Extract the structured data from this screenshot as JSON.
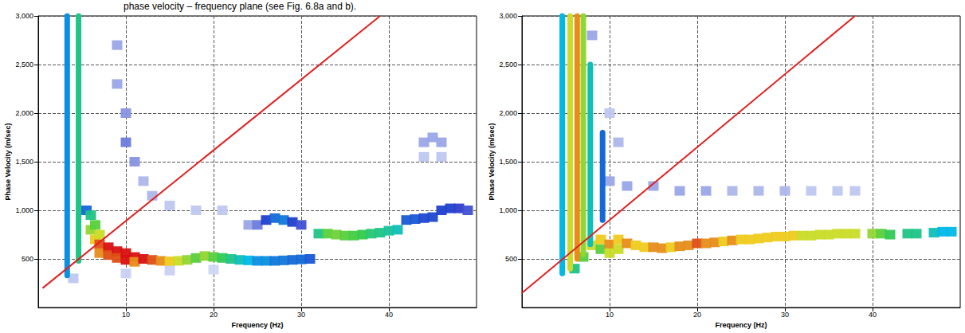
{
  "caption": "phase velocity – frequency plane (see Fig. 6.8a and b).",
  "chart_data": [
    {
      "type": "scatter",
      "x_label": "Frequency (Hz)",
      "y_label": "Phase Velocity (m/sec)",
      "xlim": [
        0,
        50
      ],
      "xticks": [
        10,
        20,
        30,
        40
      ],
      "ylim": [
        0,
        3000
      ],
      "yticks": [
        500,
        1000,
        1500,
        2000,
        2500,
        3000
      ],
      "grid": true,
      "intensity_range": [
        0,
        1
      ],
      "cells": [
        [
          5.5,
          1000,
          0.4
        ],
        [
          6,
          950,
          0.6
        ],
        [
          6,
          800,
          0.75
        ],
        [
          6.5,
          850,
          0.7
        ],
        [
          6.5,
          700,
          0.85
        ],
        [
          7,
          750,
          0.8
        ],
        [
          7,
          650,
          0.95
        ],
        [
          7,
          560,
          0.9
        ],
        [
          8,
          620,
          1
        ],
        [
          8,
          540,
          0.95
        ],
        [
          9,
          580,
          1
        ],
        [
          9,
          510,
          0.95
        ],
        [
          10,
          560,
          1
        ],
        [
          10,
          490,
          1
        ],
        [
          11,
          520,
          1
        ],
        [
          11,
          470,
          0.9
        ],
        [
          12,
          500,
          1
        ],
        [
          13,
          490,
          0.95
        ],
        [
          14,
          480,
          0.9
        ],
        [
          15,
          475,
          0.85
        ],
        [
          16,
          480,
          0.8
        ],
        [
          17,
          490,
          0.75
        ],
        [
          18,
          510,
          0.7
        ],
        [
          19,
          530,
          0.75
        ],
        [
          20,
          520,
          0.7
        ],
        [
          21,
          510,
          0.65
        ],
        [
          22,
          500,
          0.6
        ],
        [
          23,
          490,
          0.55
        ],
        [
          24,
          485,
          0.5
        ],
        [
          25,
          480,
          0.45
        ],
        [
          26,
          480,
          0.45
        ],
        [
          27,
          480,
          0.42
        ],
        [
          28,
          485,
          0.42
        ],
        [
          29,
          490,
          0.4
        ],
        [
          30,
          495,
          0.4
        ],
        [
          31,
          500,
          0.38
        ],
        [
          32,
          760,
          0.6
        ],
        [
          33,
          760,
          0.7
        ],
        [
          34,
          750,
          0.72
        ],
        [
          35,
          740,
          0.7
        ],
        [
          36,
          740,
          0.68
        ],
        [
          37,
          750,
          0.66
        ],
        [
          38,
          760,
          0.62
        ],
        [
          39,
          770,
          0.6
        ],
        [
          40,
          790,
          0.58
        ],
        [
          41,
          800,
          0.55
        ],
        [
          24,
          850,
          0.2
        ],
        [
          25,
          850,
          0.25
        ],
        [
          26,
          900,
          0.35
        ],
        [
          27,
          920,
          0.4
        ],
        [
          28,
          900,
          0.42
        ],
        [
          29,
          880,
          0.35
        ],
        [
          30,
          850,
          0.3
        ],
        [
          42,
          900,
          0.38
        ],
        [
          43,
          910,
          0.38
        ],
        [
          44,
          920,
          0.36
        ],
        [
          45,
          930,
          0.36
        ],
        [
          46,
          1000,
          0.35
        ],
        [
          47,
          1020,
          0.35
        ],
        [
          48,
          1020,
          0.32
        ],
        [
          49,
          1000,
          0.3
        ],
        [
          44,
          1700,
          0.2
        ],
        [
          45,
          1750,
          0.2
        ],
        [
          46,
          1700,
          0.2
        ],
        [
          44,
          1550,
          0.15
        ],
        [
          46,
          1550,
          0.15
        ],
        [
          9,
          2700,
          0.2
        ],
        [
          9,
          2300,
          0.2
        ],
        [
          10,
          2000,
          0.22
        ],
        [
          10,
          1700,
          0.25
        ],
        [
          11,
          1500,
          0.22
        ],
        [
          12,
          1300,
          0.18
        ],
        [
          13,
          1150,
          0.18
        ],
        [
          15,
          1050,
          0.15
        ],
        [
          18,
          1000,
          0.15
        ],
        [
          21,
          1000,
          0.15
        ],
        [
          4,
          300,
          0.15
        ],
        [
          10,
          350,
          0.12
        ],
        [
          15,
          380,
          0.12
        ],
        [
          20,
          390,
          0.1
        ]
      ],
      "streaks": [
        {
          "frequency": 3.3,
          "velocity_range": [
            330,
            3000
          ],
          "intensity": 0.45
        },
        {
          "frequency": 4.6,
          "velocity_range": [
            480,
            3000
          ],
          "intensity": 0.6
        }
      ],
      "line": {
        "color": "#e02020",
        "points": [
          [
            0.5,
            200
          ],
          [
            39,
            3000
          ]
        ]
      }
    },
    {
      "type": "scatter",
      "x_label": "Frequency (Hz)",
      "y_label": "Phase Velocity (m/sec)",
      "xlim": [
        0,
        50
      ],
      "xticks": [
        10,
        20,
        30,
        40
      ],
      "ylim": [
        0,
        3000
      ],
      "yticks": [
        500,
        1000,
        1500,
        2000,
        2500,
        3000
      ],
      "grid": true,
      "intensity_range": [
        0,
        1
      ],
      "cells": [
        [
          6,
          400,
          0.6
        ],
        [
          7,
          520,
          0.7
        ],
        [
          8,
          640,
          0.8
        ],
        [
          9,
          700,
          0.85
        ],
        [
          9,
          600,
          0.7
        ],
        [
          10,
          650,
          0.9
        ],
        [
          10,
          560,
          0.8
        ],
        [
          11,
          700,
          0.85
        ],
        [
          11,
          600,
          0.8
        ],
        [
          12,
          660,
          0.9
        ],
        [
          13,
          640,
          0.85
        ],
        [
          14,
          620,
          0.85
        ],
        [
          15,
          620,
          0.9
        ],
        [
          16,
          610,
          0.9
        ],
        [
          17,
          620,
          0.85
        ],
        [
          18,
          630,
          0.9
        ],
        [
          19,
          640,
          0.9
        ],
        [
          20,
          660,
          0.95
        ],
        [
          21,
          660,
          0.9
        ],
        [
          22,
          670,
          0.9
        ],
        [
          23,
          680,
          0.85
        ],
        [
          24,
          690,
          0.9
        ],
        [
          25,
          700,
          0.85
        ],
        [
          26,
          700,
          0.85
        ],
        [
          27,
          710,
          0.85
        ],
        [
          28,
          720,
          0.85
        ],
        [
          29,
          730,
          0.85
        ],
        [
          30,
          730,
          0.85
        ],
        [
          31,
          740,
          0.85
        ],
        [
          32,
          740,
          0.8
        ],
        [
          33,
          740,
          0.8
        ],
        [
          34,
          750,
          0.8
        ],
        [
          35,
          750,
          0.8
        ],
        [
          36,
          760,
          0.8
        ],
        [
          37,
          760,
          0.8
        ],
        [
          38,
          760,
          0.8
        ],
        [
          40,
          760,
          0.75
        ],
        [
          41,
          760,
          0.7
        ],
        [
          42,
          750,
          0.65
        ],
        [
          44,
          760,
          0.6
        ],
        [
          45,
          760,
          0.6
        ],
        [
          47,
          770,
          0.55
        ],
        [
          48,
          780,
          0.5
        ],
        [
          49,
          780,
          0.5
        ],
        [
          10,
          1300,
          0.2
        ],
        [
          12,
          1250,
          0.2
        ],
        [
          15,
          1250,
          0.2
        ],
        [
          18,
          1200,
          0.2
        ],
        [
          21,
          1200,
          0.2
        ],
        [
          24,
          1200,
          0.18
        ],
        [
          27,
          1200,
          0.18
        ],
        [
          30,
          1200,
          0.18
        ],
        [
          33,
          1200,
          0.15
        ],
        [
          36,
          1200,
          0.15
        ],
        [
          38,
          1200,
          0.15
        ],
        [
          10,
          2000,
          0.15
        ],
        [
          11,
          1700,
          0.18
        ],
        [
          8,
          2800,
          0.2
        ]
      ],
      "streaks": [
        {
          "frequency": 4.6,
          "velocity_range": [
            350,
            3000
          ],
          "intensity": 0.5
        },
        {
          "frequency": 5.5,
          "velocity_range": [
            400,
            3000
          ],
          "intensity": 0.8
        },
        {
          "frequency": 6.3,
          "velocity_range": [
            500,
            3000
          ],
          "intensity": 0.9
        },
        {
          "frequency": 7,
          "velocity_range": [
            550,
            3000
          ],
          "intensity": 0.75
        },
        {
          "frequency": 7.8,
          "velocity_range": [
            650,
            2500
          ],
          "intensity": 0.55
        },
        {
          "frequency": 9.2,
          "velocity_range": [
            900,
            1800
          ],
          "intensity": 0.4
        }
      ],
      "line": {
        "color": "#e02020",
        "points": [
          [
            0,
            150
          ],
          [
            38,
            3000
          ]
        ]
      }
    }
  ]
}
